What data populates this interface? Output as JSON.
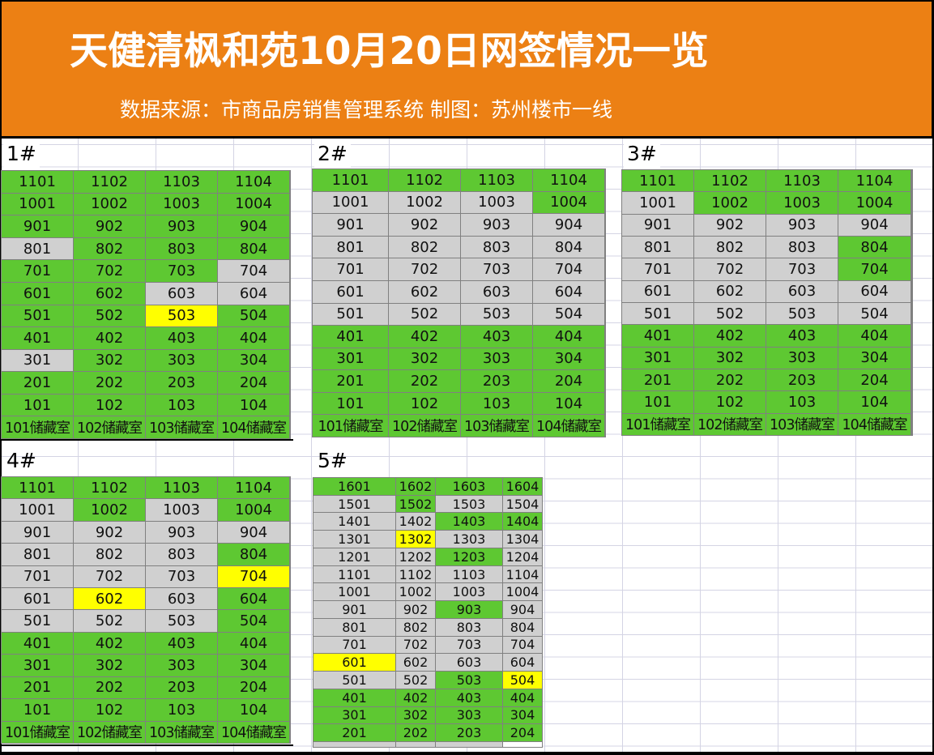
{
  "header": {
    "title": "天健清枫和苑10月20日网签情况一览",
    "subtitle": "数据来源：市商品房销售管理系统  制图：苏州楼市一线"
  },
  "legend_colors": {
    "signed_green": "#5EC832",
    "unsold_gray": "#D0D0D0",
    "today_yellow": "#FFFF00",
    "header_orange": "#EC8014"
  },
  "buildings": [
    {
      "label": "1#",
      "rows": [
        [
          {
            "t": "1101",
            "s": "G"
          },
          {
            "t": "1102",
            "s": "G"
          },
          {
            "t": "1103",
            "s": "G"
          },
          {
            "t": "1104",
            "s": "G"
          }
        ],
        [
          {
            "t": "1001",
            "s": "G"
          },
          {
            "t": "1002",
            "s": "G"
          },
          {
            "t": "1003",
            "s": "G"
          },
          {
            "t": "1004",
            "s": "G"
          }
        ],
        [
          {
            "t": "901",
            "s": "G"
          },
          {
            "t": "902",
            "s": "G"
          },
          {
            "t": "903",
            "s": "G"
          },
          {
            "t": "904",
            "s": "G"
          }
        ],
        [
          {
            "t": "801",
            "s": "X"
          },
          {
            "t": "802",
            "s": "G"
          },
          {
            "t": "803",
            "s": "G"
          },
          {
            "t": "804",
            "s": "G"
          }
        ],
        [
          {
            "t": "701",
            "s": "G"
          },
          {
            "t": "702",
            "s": "G"
          },
          {
            "t": "703",
            "s": "G"
          },
          {
            "t": "704",
            "s": "X"
          }
        ],
        [
          {
            "t": "601",
            "s": "G"
          },
          {
            "t": "602",
            "s": "G"
          },
          {
            "t": "603",
            "s": "X"
          },
          {
            "t": "604",
            "s": "X"
          }
        ],
        [
          {
            "t": "501",
            "s": "G"
          },
          {
            "t": "502",
            "s": "G"
          },
          {
            "t": "503",
            "s": "Y"
          },
          {
            "t": "504",
            "s": "G"
          }
        ],
        [
          {
            "t": "401",
            "s": "G"
          },
          {
            "t": "402",
            "s": "G"
          },
          {
            "t": "403",
            "s": "G"
          },
          {
            "t": "404",
            "s": "G"
          }
        ],
        [
          {
            "t": "301",
            "s": "X"
          },
          {
            "t": "302",
            "s": "G"
          },
          {
            "t": "303",
            "s": "G"
          },
          {
            "t": "304",
            "s": "G"
          }
        ],
        [
          {
            "t": "201",
            "s": "G"
          },
          {
            "t": "202",
            "s": "G"
          },
          {
            "t": "203",
            "s": "G"
          },
          {
            "t": "204",
            "s": "G"
          }
        ],
        [
          {
            "t": "101",
            "s": "G"
          },
          {
            "t": "102",
            "s": "G"
          },
          {
            "t": "103",
            "s": "G"
          },
          {
            "t": "104",
            "s": "G"
          }
        ],
        [
          {
            "t": "101储藏室",
            "s": "G"
          },
          {
            "t": "102储藏室",
            "s": "G"
          },
          {
            "t": "103储藏室",
            "s": "G"
          },
          {
            "t": "104储藏室",
            "s": "G"
          }
        ]
      ]
    },
    {
      "label": "2#",
      "rows": [
        [
          {
            "t": "1101",
            "s": "G"
          },
          {
            "t": "1102",
            "s": "G"
          },
          {
            "t": "1103",
            "s": "G"
          },
          {
            "t": "1104",
            "s": "G"
          }
        ],
        [
          {
            "t": "1001",
            "s": "X"
          },
          {
            "t": "1002",
            "s": "X"
          },
          {
            "t": "1003",
            "s": "X"
          },
          {
            "t": "1004",
            "s": "G"
          }
        ],
        [
          {
            "t": "901",
            "s": "X"
          },
          {
            "t": "902",
            "s": "X"
          },
          {
            "t": "903",
            "s": "X"
          },
          {
            "t": "904",
            "s": "X"
          }
        ],
        [
          {
            "t": "801",
            "s": "X"
          },
          {
            "t": "802",
            "s": "X"
          },
          {
            "t": "803",
            "s": "X"
          },
          {
            "t": "804",
            "s": "X"
          }
        ],
        [
          {
            "t": "701",
            "s": "X"
          },
          {
            "t": "702",
            "s": "X"
          },
          {
            "t": "703",
            "s": "X"
          },
          {
            "t": "704",
            "s": "X"
          }
        ],
        [
          {
            "t": "601",
            "s": "X"
          },
          {
            "t": "602",
            "s": "X"
          },
          {
            "t": "603",
            "s": "X"
          },
          {
            "t": "604",
            "s": "X"
          }
        ],
        [
          {
            "t": "501",
            "s": "X"
          },
          {
            "t": "502",
            "s": "X"
          },
          {
            "t": "503",
            "s": "X"
          },
          {
            "t": "504",
            "s": "X"
          }
        ],
        [
          {
            "t": "401",
            "s": "G"
          },
          {
            "t": "402",
            "s": "G"
          },
          {
            "t": "403",
            "s": "G"
          },
          {
            "t": "404",
            "s": "G"
          }
        ],
        [
          {
            "t": "301",
            "s": "G"
          },
          {
            "t": "302",
            "s": "G"
          },
          {
            "t": "303",
            "s": "G"
          },
          {
            "t": "304",
            "s": "G"
          }
        ],
        [
          {
            "t": "201",
            "s": "G"
          },
          {
            "t": "202",
            "s": "G"
          },
          {
            "t": "203",
            "s": "G"
          },
          {
            "t": "204",
            "s": "G"
          }
        ],
        [
          {
            "t": "101",
            "s": "G"
          },
          {
            "t": "102",
            "s": "G"
          },
          {
            "t": "103",
            "s": "G"
          },
          {
            "t": "104",
            "s": "G"
          }
        ],
        [
          {
            "t": "101储藏室",
            "s": "G"
          },
          {
            "t": "102储藏室",
            "s": "G"
          },
          {
            "t": "103储藏室",
            "s": "G"
          },
          {
            "t": "104储藏室",
            "s": "G"
          }
        ]
      ]
    },
    {
      "label": "3#",
      "rows": [
        [
          {
            "t": "1101",
            "s": "G"
          },
          {
            "t": "1102",
            "s": "G"
          },
          {
            "t": "1103",
            "s": "G"
          },
          {
            "t": "1104",
            "s": "G"
          }
        ],
        [
          {
            "t": "1001",
            "s": "X"
          },
          {
            "t": "1002",
            "s": "G"
          },
          {
            "t": "1003",
            "s": "G"
          },
          {
            "t": "1004",
            "s": "G"
          }
        ],
        [
          {
            "t": "901",
            "s": "X"
          },
          {
            "t": "902",
            "s": "X"
          },
          {
            "t": "903",
            "s": "X"
          },
          {
            "t": "904",
            "s": "X"
          }
        ],
        [
          {
            "t": "801",
            "s": "X"
          },
          {
            "t": "802",
            "s": "X"
          },
          {
            "t": "803",
            "s": "X"
          },
          {
            "t": "804",
            "s": "G"
          }
        ],
        [
          {
            "t": "701",
            "s": "X"
          },
          {
            "t": "702",
            "s": "X"
          },
          {
            "t": "703",
            "s": "X"
          },
          {
            "t": "704",
            "s": "G"
          }
        ],
        [
          {
            "t": "601",
            "s": "X"
          },
          {
            "t": "602",
            "s": "X"
          },
          {
            "t": "603",
            "s": "X"
          },
          {
            "t": "604",
            "s": "X"
          }
        ],
        [
          {
            "t": "501",
            "s": "X"
          },
          {
            "t": "502",
            "s": "X"
          },
          {
            "t": "503",
            "s": "X"
          },
          {
            "t": "504",
            "s": "X"
          }
        ],
        [
          {
            "t": "401",
            "s": "G"
          },
          {
            "t": "402",
            "s": "G"
          },
          {
            "t": "403",
            "s": "G"
          },
          {
            "t": "404",
            "s": "G"
          }
        ],
        [
          {
            "t": "301",
            "s": "G"
          },
          {
            "t": "302",
            "s": "G"
          },
          {
            "t": "303",
            "s": "G"
          },
          {
            "t": "304",
            "s": "G"
          }
        ],
        [
          {
            "t": "201",
            "s": "G"
          },
          {
            "t": "202",
            "s": "G"
          },
          {
            "t": "203",
            "s": "G"
          },
          {
            "t": "204",
            "s": "G"
          }
        ],
        [
          {
            "t": "101",
            "s": "G"
          },
          {
            "t": "102",
            "s": "G"
          },
          {
            "t": "103",
            "s": "G"
          },
          {
            "t": "104",
            "s": "G"
          }
        ],
        [
          {
            "t": "101储藏室",
            "s": "G"
          },
          {
            "t": "102储藏室",
            "s": "G"
          },
          {
            "t": "103储藏室",
            "s": "G"
          },
          {
            "t": "104储藏室",
            "s": "G"
          }
        ]
      ]
    },
    {
      "label": "4#",
      "rows": [
        [
          {
            "t": "1101",
            "s": "G"
          },
          {
            "t": "1102",
            "s": "G"
          },
          {
            "t": "1103",
            "s": "G"
          },
          {
            "t": "1104",
            "s": "G"
          }
        ],
        [
          {
            "t": "1001",
            "s": "X"
          },
          {
            "t": "1002",
            "s": "G"
          },
          {
            "t": "1003",
            "s": "X"
          },
          {
            "t": "1004",
            "s": "G"
          }
        ],
        [
          {
            "t": "901",
            "s": "X"
          },
          {
            "t": "902",
            "s": "X"
          },
          {
            "t": "903",
            "s": "X"
          },
          {
            "t": "904",
            "s": "X"
          }
        ],
        [
          {
            "t": "801",
            "s": "X"
          },
          {
            "t": "802",
            "s": "X"
          },
          {
            "t": "803",
            "s": "X"
          },
          {
            "t": "804",
            "s": "G"
          }
        ],
        [
          {
            "t": "701",
            "s": "X"
          },
          {
            "t": "702",
            "s": "X"
          },
          {
            "t": "703",
            "s": "X"
          },
          {
            "t": "704",
            "s": "Y"
          }
        ],
        [
          {
            "t": "601",
            "s": "X"
          },
          {
            "t": "602",
            "s": "Y"
          },
          {
            "t": "603",
            "s": "X"
          },
          {
            "t": "604",
            "s": "G"
          }
        ],
        [
          {
            "t": "501",
            "s": "X"
          },
          {
            "t": "502",
            "s": "X"
          },
          {
            "t": "503",
            "s": "X"
          },
          {
            "t": "504",
            "s": "G"
          }
        ],
        [
          {
            "t": "401",
            "s": "G"
          },
          {
            "t": "402",
            "s": "G"
          },
          {
            "t": "403",
            "s": "G"
          },
          {
            "t": "404",
            "s": "G"
          }
        ],
        [
          {
            "t": "301",
            "s": "G"
          },
          {
            "t": "302",
            "s": "G"
          },
          {
            "t": "303",
            "s": "G"
          },
          {
            "t": "304",
            "s": "G"
          }
        ],
        [
          {
            "t": "201",
            "s": "G"
          },
          {
            "t": "202",
            "s": "G"
          },
          {
            "t": "203",
            "s": "G"
          },
          {
            "t": "204",
            "s": "G"
          }
        ],
        [
          {
            "t": "101",
            "s": "G"
          },
          {
            "t": "102",
            "s": "G"
          },
          {
            "t": "103",
            "s": "G"
          },
          {
            "t": "104",
            "s": "G"
          }
        ],
        [
          {
            "t": "101储藏室",
            "s": "G"
          },
          {
            "t": "102储藏室",
            "s": "G"
          },
          {
            "t": "103储藏室",
            "s": "G"
          },
          {
            "t": "104储藏室",
            "s": "G"
          }
        ]
      ]
    },
    {
      "label": "5#",
      "rows": [
        [
          {
            "t": "1601",
            "s": "G"
          },
          {
            "t": "1602",
            "s": "G"
          },
          {
            "t": "1603",
            "s": "G"
          },
          {
            "t": "1604",
            "s": "G"
          }
        ],
        [
          {
            "t": "1501",
            "s": "X"
          },
          {
            "t": "1502",
            "s": "G"
          },
          {
            "t": "1503",
            "s": "X"
          },
          {
            "t": "1504",
            "s": "X"
          }
        ],
        [
          {
            "t": "1401",
            "s": "X"
          },
          {
            "t": "1402",
            "s": "X"
          },
          {
            "t": "1403",
            "s": "G"
          },
          {
            "t": "1404",
            "s": "G"
          }
        ],
        [
          {
            "t": "1301",
            "s": "X"
          },
          {
            "t": "1302",
            "s": "Y"
          },
          {
            "t": "1303",
            "s": "X"
          },
          {
            "t": "1304",
            "s": "X"
          }
        ],
        [
          {
            "t": "1201",
            "s": "X"
          },
          {
            "t": "1202",
            "s": "X"
          },
          {
            "t": "1203",
            "s": "G"
          },
          {
            "t": "1204",
            "s": "X"
          }
        ],
        [
          {
            "t": "1101",
            "s": "X"
          },
          {
            "t": "1102",
            "s": "X"
          },
          {
            "t": "1103",
            "s": "X"
          },
          {
            "t": "1104",
            "s": "X"
          }
        ],
        [
          {
            "t": "1001",
            "s": "X"
          },
          {
            "t": "1002",
            "s": "X"
          },
          {
            "t": "1003",
            "s": "X"
          },
          {
            "t": "1004",
            "s": "X"
          }
        ],
        [
          {
            "t": "901",
            "s": "X"
          },
          {
            "t": "902",
            "s": "X"
          },
          {
            "t": "903",
            "s": "G"
          },
          {
            "t": "904",
            "s": "X"
          }
        ],
        [
          {
            "t": "801",
            "s": "X"
          },
          {
            "t": "802",
            "s": "X"
          },
          {
            "t": "803",
            "s": "X"
          },
          {
            "t": "804",
            "s": "X"
          }
        ],
        [
          {
            "t": "701",
            "s": "X"
          },
          {
            "t": "702",
            "s": "X"
          },
          {
            "t": "703",
            "s": "X"
          },
          {
            "t": "704",
            "s": "X"
          }
        ],
        [
          {
            "t": "601",
            "s": "Y"
          },
          {
            "t": "602",
            "s": "X"
          },
          {
            "t": "603",
            "s": "X"
          },
          {
            "t": "604",
            "s": "X"
          }
        ],
        [
          {
            "t": "501",
            "s": "X"
          },
          {
            "t": "502",
            "s": "X"
          },
          {
            "t": "503",
            "s": "G"
          },
          {
            "t": "504",
            "s": "Y"
          }
        ],
        [
          {
            "t": "401",
            "s": "G"
          },
          {
            "t": "402",
            "s": "G"
          },
          {
            "t": "403",
            "s": "G"
          },
          {
            "t": "404",
            "s": "G"
          }
        ],
        [
          {
            "t": "301",
            "s": "G"
          },
          {
            "t": "302",
            "s": "G"
          },
          {
            "t": "303",
            "s": "G"
          },
          {
            "t": "304",
            "s": "G"
          }
        ],
        [
          {
            "t": "201",
            "s": "G"
          },
          {
            "t": "202",
            "s": "G"
          },
          {
            "t": "203",
            "s": "G"
          },
          {
            "t": "204",
            "s": "G"
          }
        ]
      ]
    }
  ]
}
